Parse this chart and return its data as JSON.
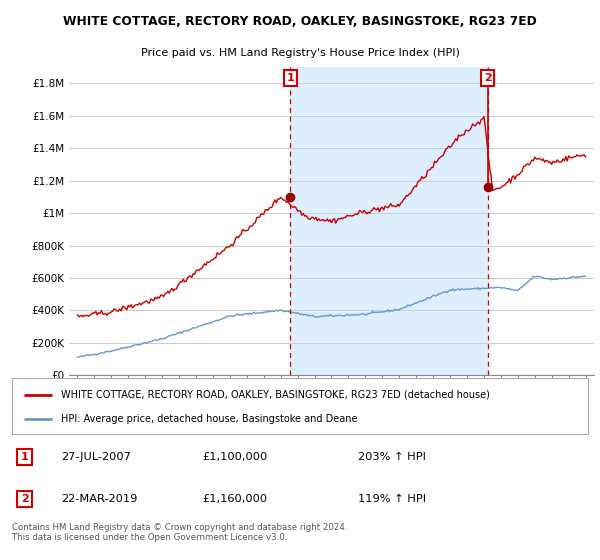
{
  "title": "WHITE COTTAGE, RECTORY ROAD, OAKLEY, BASINGSTOKE, RG23 7ED",
  "subtitle": "Price paid vs. HM Land Registry's House Price Index (HPI)",
  "background_color": "#ffffff",
  "plot_bg_color": "#ffffff",
  "shade_color": "#ddeeff",
  "grid_color": "#cccccc",
  "red_line_color": "#cc0000",
  "blue_line_color": "#6699cc",
  "marker1_x": 2007.57,
  "marker1_y": 1100000,
  "marker2_x": 2019.22,
  "marker2_y": 1160000,
  "dashed_line_color": "#cc0000",
  "ylim": [
    0,
    1900000
  ],
  "xlim_start": 1994.5,
  "xlim_end": 2025.5,
  "yticks": [
    0,
    200000,
    400000,
    600000,
    800000,
    1000000,
    1200000,
    1400000,
    1600000,
    1800000
  ],
  "ytick_labels": [
    "£0",
    "£200K",
    "£400K",
    "£600K",
    "£800K",
    "£1M",
    "£1.2M",
    "£1.4M",
    "£1.6M",
    "£1.8M"
  ],
  "xticks": [
    1995,
    1996,
    1997,
    1998,
    1999,
    2000,
    2001,
    2002,
    2003,
    2004,
    2005,
    2006,
    2007,
    2008,
    2009,
    2010,
    2011,
    2012,
    2013,
    2014,
    2015,
    2016,
    2017,
    2018,
    2019,
    2020,
    2021,
    2022,
    2023,
    2024,
    2025
  ],
  "legend_red_label": "WHITE COTTAGE, RECTORY ROAD, OAKLEY, BASINGSTOKE, RG23 7ED (detached house)",
  "legend_blue_label": "HPI: Average price, detached house, Basingstoke and Deane",
  "annotation1_date": "27-JUL-2007",
  "annotation1_price": "£1,100,000",
  "annotation1_hpi": "203% ↑ HPI",
  "annotation2_date": "22-MAR-2019",
  "annotation2_price": "£1,160,000",
  "annotation2_hpi": "119% ↑ HPI",
  "footnote": "Contains HM Land Registry data © Crown copyright and database right 2024.\nThis data is licensed under the Open Government Licence v3.0."
}
